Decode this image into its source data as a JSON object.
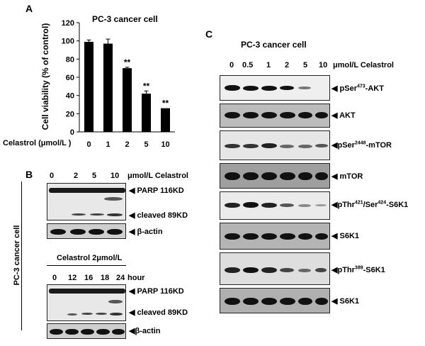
{
  "panel_a": {
    "letter": "A",
    "title": "PC-3 cancer cell",
    "ylabel": "Cell viability (% of control)",
    "xlabel_prefix": "Celastrol (μmol/L )",
    "chart_data": {
      "type": "bar",
      "title": "PC-3 cancer cell",
      "xlabel": "Celastrol (μmol/L )",
      "ylabel": "Cell viability (% of control)",
      "categories": [
        "0",
        "1",
        "2",
        "5",
        "10"
      ],
      "values": [
        99,
        97,
        70,
        42,
        26
      ],
      "errors": [
        2,
        5,
        1,
        3,
        0
      ],
      "ylim": [
        0,
        120
      ],
      "yticks": [
        "0",
        "20",
        "40",
        "60",
        "80",
        "100",
        "120"
      ],
      "annotations": [
        "",
        "",
        "**",
        "**",
        "**"
      ],
      "grid": false,
      "bar_color": "#000000"
    }
  },
  "panel_b": {
    "letter": "B",
    "side_label": "PC-3 cancer cell",
    "top": {
      "lanes": [
        "0",
        "2",
        "5",
        "10"
      ],
      "unit": "μmol/L Celastrol",
      "labels": [
        "PARP 116KD",
        "cleaved 89KD",
        "β-actin"
      ]
    },
    "bottom": {
      "header": "Celastrol 2μmol/L",
      "lanes": [
        "0",
        "12",
        "16",
        "18",
        "24"
      ],
      "unit": "hour",
      "labels": [
        "PARP 116KD",
        "cleaved 89KD",
        "β-actin"
      ]
    }
  },
  "panel_c": {
    "letter": "C",
    "title": "PC-3 cancer cell",
    "lanes": [
      "0",
      "0.5",
      "1",
      "2",
      "5",
      "10"
    ],
    "unit": "μmol/L Celastrol",
    "rows": [
      {
        "pre": "pSer",
        "sup": "473",
        "post": "-AKT"
      },
      {
        "pre": "AKT",
        "sup": "",
        "post": ""
      },
      {
        "pre": "pSer",
        "sup": "2448",
        "post": "-mTOR"
      },
      {
        "pre": "mTOR",
        "sup": "",
        "post": ""
      },
      {
        "pre": "pThr",
        "sup": "421",
        "mid": "/Ser",
        "sup2": "424",
        "post": "-S6K1"
      },
      {
        "pre": "S6K1",
        "sup": "",
        "post": ""
      },
      {
        "pre": "pThr",
        "sup": "389",
        "post": "-S6K1"
      },
      {
        "pre": "S6K1",
        "sup": "",
        "post": ""
      }
    ]
  }
}
